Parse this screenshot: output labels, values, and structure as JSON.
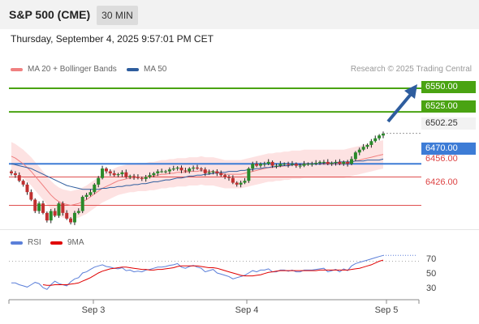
{
  "header": {
    "title": "S&P 500 (CME)",
    "timeframe": "30 MIN"
  },
  "datetime": "Thursday, September 4, 2025 9:57:01 PM CET",
  "legend": {
    "ma20": {
      "label": "MA 20 + Bollinger Bands",
      "color": "#f08080"
    },
    "ma50": {
      "label": "MA 50",
      "color": "#2e5d9e"
    }
  },
  "credit": "Research © 2025 Trading Central",
  "levels": {
    "r2": {
      "label": "6550.00",
      "value": 6550,
      "color": "#4aa312"
    },
    "r1": {
      "label": "6525.00",
      "value": 6525,
      "color": "#4aa312"
    },
    "last": {
      "label": "6502.25",
      "value": 6502.25
    },
    "pivot": {
      "label": "6470.00",
      "value": 6470,
      "color": "#3d7cd6"
    },
    "s1": {
      "label": "6456.00",
      "value": 6456,
      "color": "#e05050"
    },
    "s2": {
      "label": "6426.00",
      "value": 6426,
      "color": "#e05050"
    }
  },
  "rsi_legend": {
    "rsi": {
      "label": "RSI",
      "color": "#5b7fd9"
    },
    "ma9": {
      "label": "9MA",
      "color": "#e00000"
    }
  },
  "rsi_ticks": [
    "70",
    "50",
    "30"
  ],
  "x_axis": [
    "Sep 3",
    "Sep 4",
    "Sep 5"
  ],
  "chart_data": [
    {
      "type": "candlestick",
      "title": "",
      "x": [
        "Sep 3",
        "Sep 4",
        "Sep 5"
      ],
      "ylim": [
        6405,
        6562
      ],
      "close_series": [
        6460,
        6458,
        6452,
        6448,
        6440,
        6432,
        6420,
        6428,
        6418,
        6410,
        6420,
        6415,
        6428,
        6418,
        6412,
        6408,
        6418,
        6420,
        6435,
        6437,
        6440,
        6448,
        6455,
        6465,
        6462,
        6460,
        6458,
        6459,
        6461,
        6456,
        6457,
        6456,
        6455,
        6454,
        6456,
        6458,
        6460,
        6462,
        6462,
        6462,
        6464,
        6465,
        6466,
        6463,
        6462,
        6465,
        6466,
        6465,
        6464,
        6460,
        6461,
        6462,
        6460,
        6458,
        6456,
        6455,
        6450,
        6448,
        6450,
        6452,
        6465,
        6470,
        6468,
        6470,
        6470,
        6472,
        6468,
        6468,
        6470,
        6470,
        6469,
        6470,
        6468,
        6468,
        6470,
        6470,
        6470,
        6471,
        6472,
        6472,
        6470,
        6471,
        6472,
        6470,
        6472,
        6470,
        6475,
        6482,
        6485,
        6488,
        6490,
        6494,
        6497,
        6500,
        6502
      ],
      "moving_averages": [
        {
          "name": "MA 20",
          "values": [
            6478,
            6476,
            6473,
            6470,
            6466,
            6462,
            6457,
            6452,
            6447,
            6442,
            6437,
            6433,
            6430,
            6428,
            6427,
            6426,
            6427,
            6428,
            6430,
            6432,
            6435,
            6438,
            6441,
            6444,
            6446,
            6448,
            6450,
            6452,
            6453,
            6454,
            6455,
            6455,
            6456,
            6456,
            6456,
            6457,
            6457,
            6458,
            6459,
            6459,
            6460,
            6460,
            6461,
            6461,
            6461,
            6462,
            6462,
            6462,
            6463,
            6462,
            6462,
            6462,
            6461,
            6460,
            6459,
            6459,
            6459,
            6459,
            6459,
            6460,
            6461,
            6462,
            6463,
            6464,
            6465,
            6466,
            6466,
            6467,
            6467,
            6468,
            6468,
            6469,
            6469,
            6469,
            6470,
            6470,
            6470,
            6470,
            6470,
            6470,
            6470,
            6470,
            6470,
            6470,
            6470,
            6471,
            6472,
            6473,
            6474,
            6475,
            6476,
            6477,
            6478,
            6479,
            6480
          ]
        },
        {
          "name": "MA 50",
          "values": [
            6470,
            6469,
            6468,
            6467,
            6466,
            6465,
            6463,
            6461,
            6459,
            6457,
            6455,
            6453,
            6451,
            6449,
            6447,
            6446,
            6445,
            6444,
            6443,
            6443,
            6443,
            6443,
            6443,
            6444,
            6444,
            6445,
            6445,
            6446,
            6446,
            6447,
            6447,
            6448,
            6448,
            6449,
            6449,
            6450,
            6451,
            6451,
            6452,
            6453,
            6453,
            6454,
            6455,
            6455,
            6456,
            6457,
            6457,
            6458,
            6458,
            6459,
            6459,
            6460,
            6460,
            6461,
            6461,
            6462,
            6462,
            6462,
            6463,
            6463,
            6464,
            6464,
            6465,
            6465,
            6466,
            6466,
            6467,
            6467,
            6468,
            6468,
            6468,
            6469,
            6469,
            6469,
            6469,
            6470,
            6470,
            6470,
            6470,
            6471,
            6471,
            6471,
            6471,
            6472,
            6472,
            6472,
            6472,
            6473,
            6473,
            6473,
            6474,
            6474,
            6474,
            6474,
            6475
          ]
        }
      ],
      "bollinger_width": 15
    },
    {
      "type": "line",
      "title": "",
      "ylim": [
        10,
        90
      ],
      "y_ticks": [
        30,
        50,
        70
      ],
      "series": [
        {
          "name": "RSI",
          "values": [
            33,
            33,
            30,
            28,
            26,
            30,
            34,
            32,
            25,
            22,
            30,
            36,
            32,
            30,
            28,
            35,
            40,
            42,
            50,
            52,
            56,
            60,
            62,
            64,
            61,
            60,
            58,
            57,
            59,
            54,
            55,
            52,
            53,
            52,
            55,
            56,
            58,
            60,
            60,
            61,
            63,
            64,
            66,
            60,
            58,
            61,
            63,
            60,
            58,
            52,
            54,
            56,
            50,
            48,
            46,
            44,
            40,
            42,
            44,
            46,
            50,
            54,
            52,
            55,
            55,
            57,
            52,
            52,
            55,
            55,
            53,
            55,
            52,
            52,
            55,
            55,
            55,
            56,
            57,
            58,
            52,
            54,
            56,
            52,
            57,
            54,
            62,
            66,
            68,
            70,
            72,
            74,
            76,
            78,
            80
          ]
        },
        {
          "name": "9MA",
          "values": [
            null,
            null,
            null,
            null,
            null,
            null,
            null,
            null,
            30,
            29,
            29,
            30,
            30,
            30,
            30,
            31,
            32,
            33,
            36,
            39,
            42,
            46,
            50,
            53,
            55,
            57,
            58,
            59,
            60,
            60,
            59,
            58,
            57,
            56,
            56,
            55,
            55,
            56,
            56,
            57,
            58,
            59,
            61,
            62,
            62,
            62,
            62,
            62,
            61,
            60,
            59,
            59,
            58,
            56,
            54,
            52,
            50,
            48,
            46,
            45,
            45,
            45,
            46,
            47,
            49,
            51,
            52,
            53,
            54,
            54,
            54,
            54,
            54,
            54,
            54,
            54,
            54,
            54,
            55,
            55,
            55,
            55,
            55,
            55,
            55,
            55,
            56,
            57,
            58,
            60,
            62,
            64,
            67,
            70,
            72
          ]
        }
      ]
    }
  ]
}
